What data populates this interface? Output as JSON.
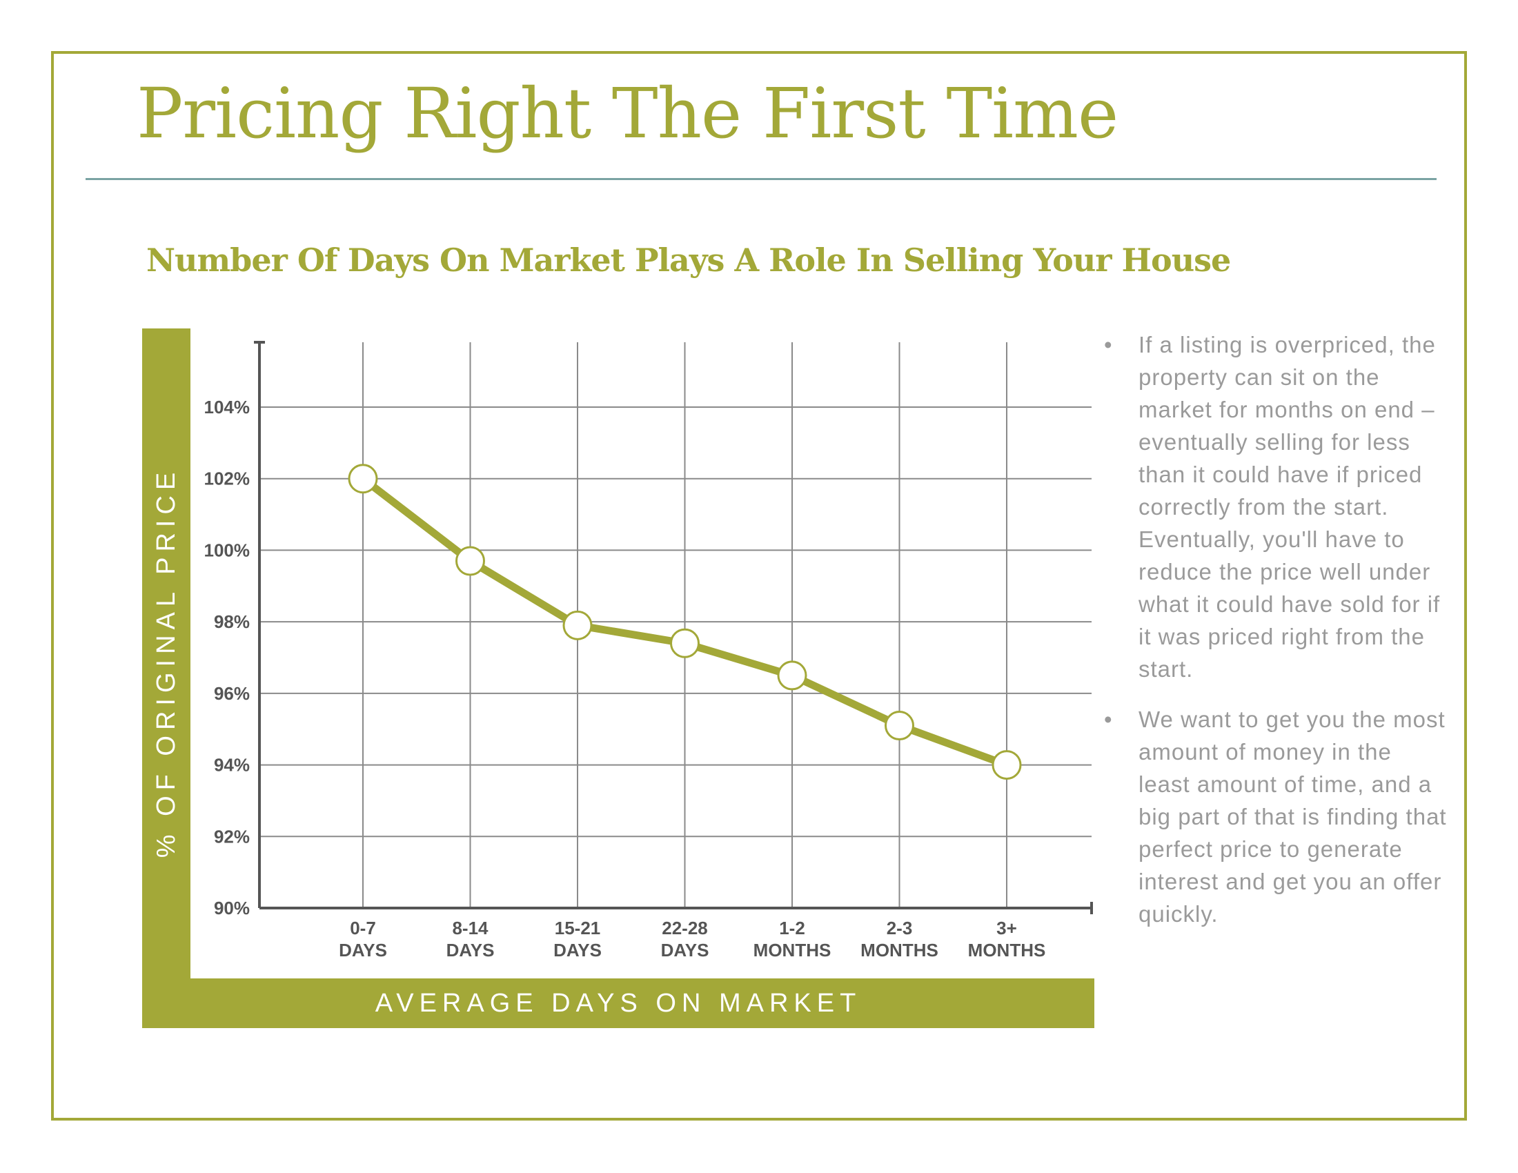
{
  "title": "Pricing Right The First Time",
  "subtitle": "Number Of Days On Market Plays A Role In Selling Your House",
  "colors": {
    "accent": "#a3a838",
    "rule": "#7aa3a3",
    "body_text": "#9a9a9a",
    "grid": "#8a8a8a"
  },
  "bullets": [
    "If a listing is overpriced, the property can sit on the market for months on end – eventually selling for less than it could have if priced correctly from the start. Eventually, you'll have to reduce the price well under what it could have sold for if it was priced right from the start.",
    "We want to get you the most amount of money in the least amount of time, and a big part of that is finding that perfect price to generate interest and get you an offer quickly."
  ],
  "chart_data": {
    "type": "line",
    "xlabel": "AVERAGE DAYS ON MARKET",
    "ylabel": "% OF ORIGINAL PRICE",
    "categories": [
      [
        "0-7",
        "DAYS"
      ],
      [
        "8-14",
        "DAYS"
      ],
      [
        "15-21",
        "DAYS"
      ],
      [
        "22-28",
        "DAYS"
      ],
      [
        "1-2",
        "MONTHS"
      ],
      [
        "2-3",
        "MONTHS"
      ],
      [
        "3+",
        "MONTHS"
      ]
    ],
    "values": [
      102,
      99.7,
      97.9,
      97.4,
      96.5,
      95.1,
      94
    ],
    "yticks": [
      90,
      92,
      94,
      96,
      98,
      100,
      102,
      104
    ],
    "ytick_labels": [
      "90%",
      "92%",
      "94%",
      "96%",
      "98%",
      "100%",
      "102%",
      "104%"
    ],
    "ylim": [
      90,
      105
    ],
    "grid": true,
    "line_color": "#a3a838"
  }
}
